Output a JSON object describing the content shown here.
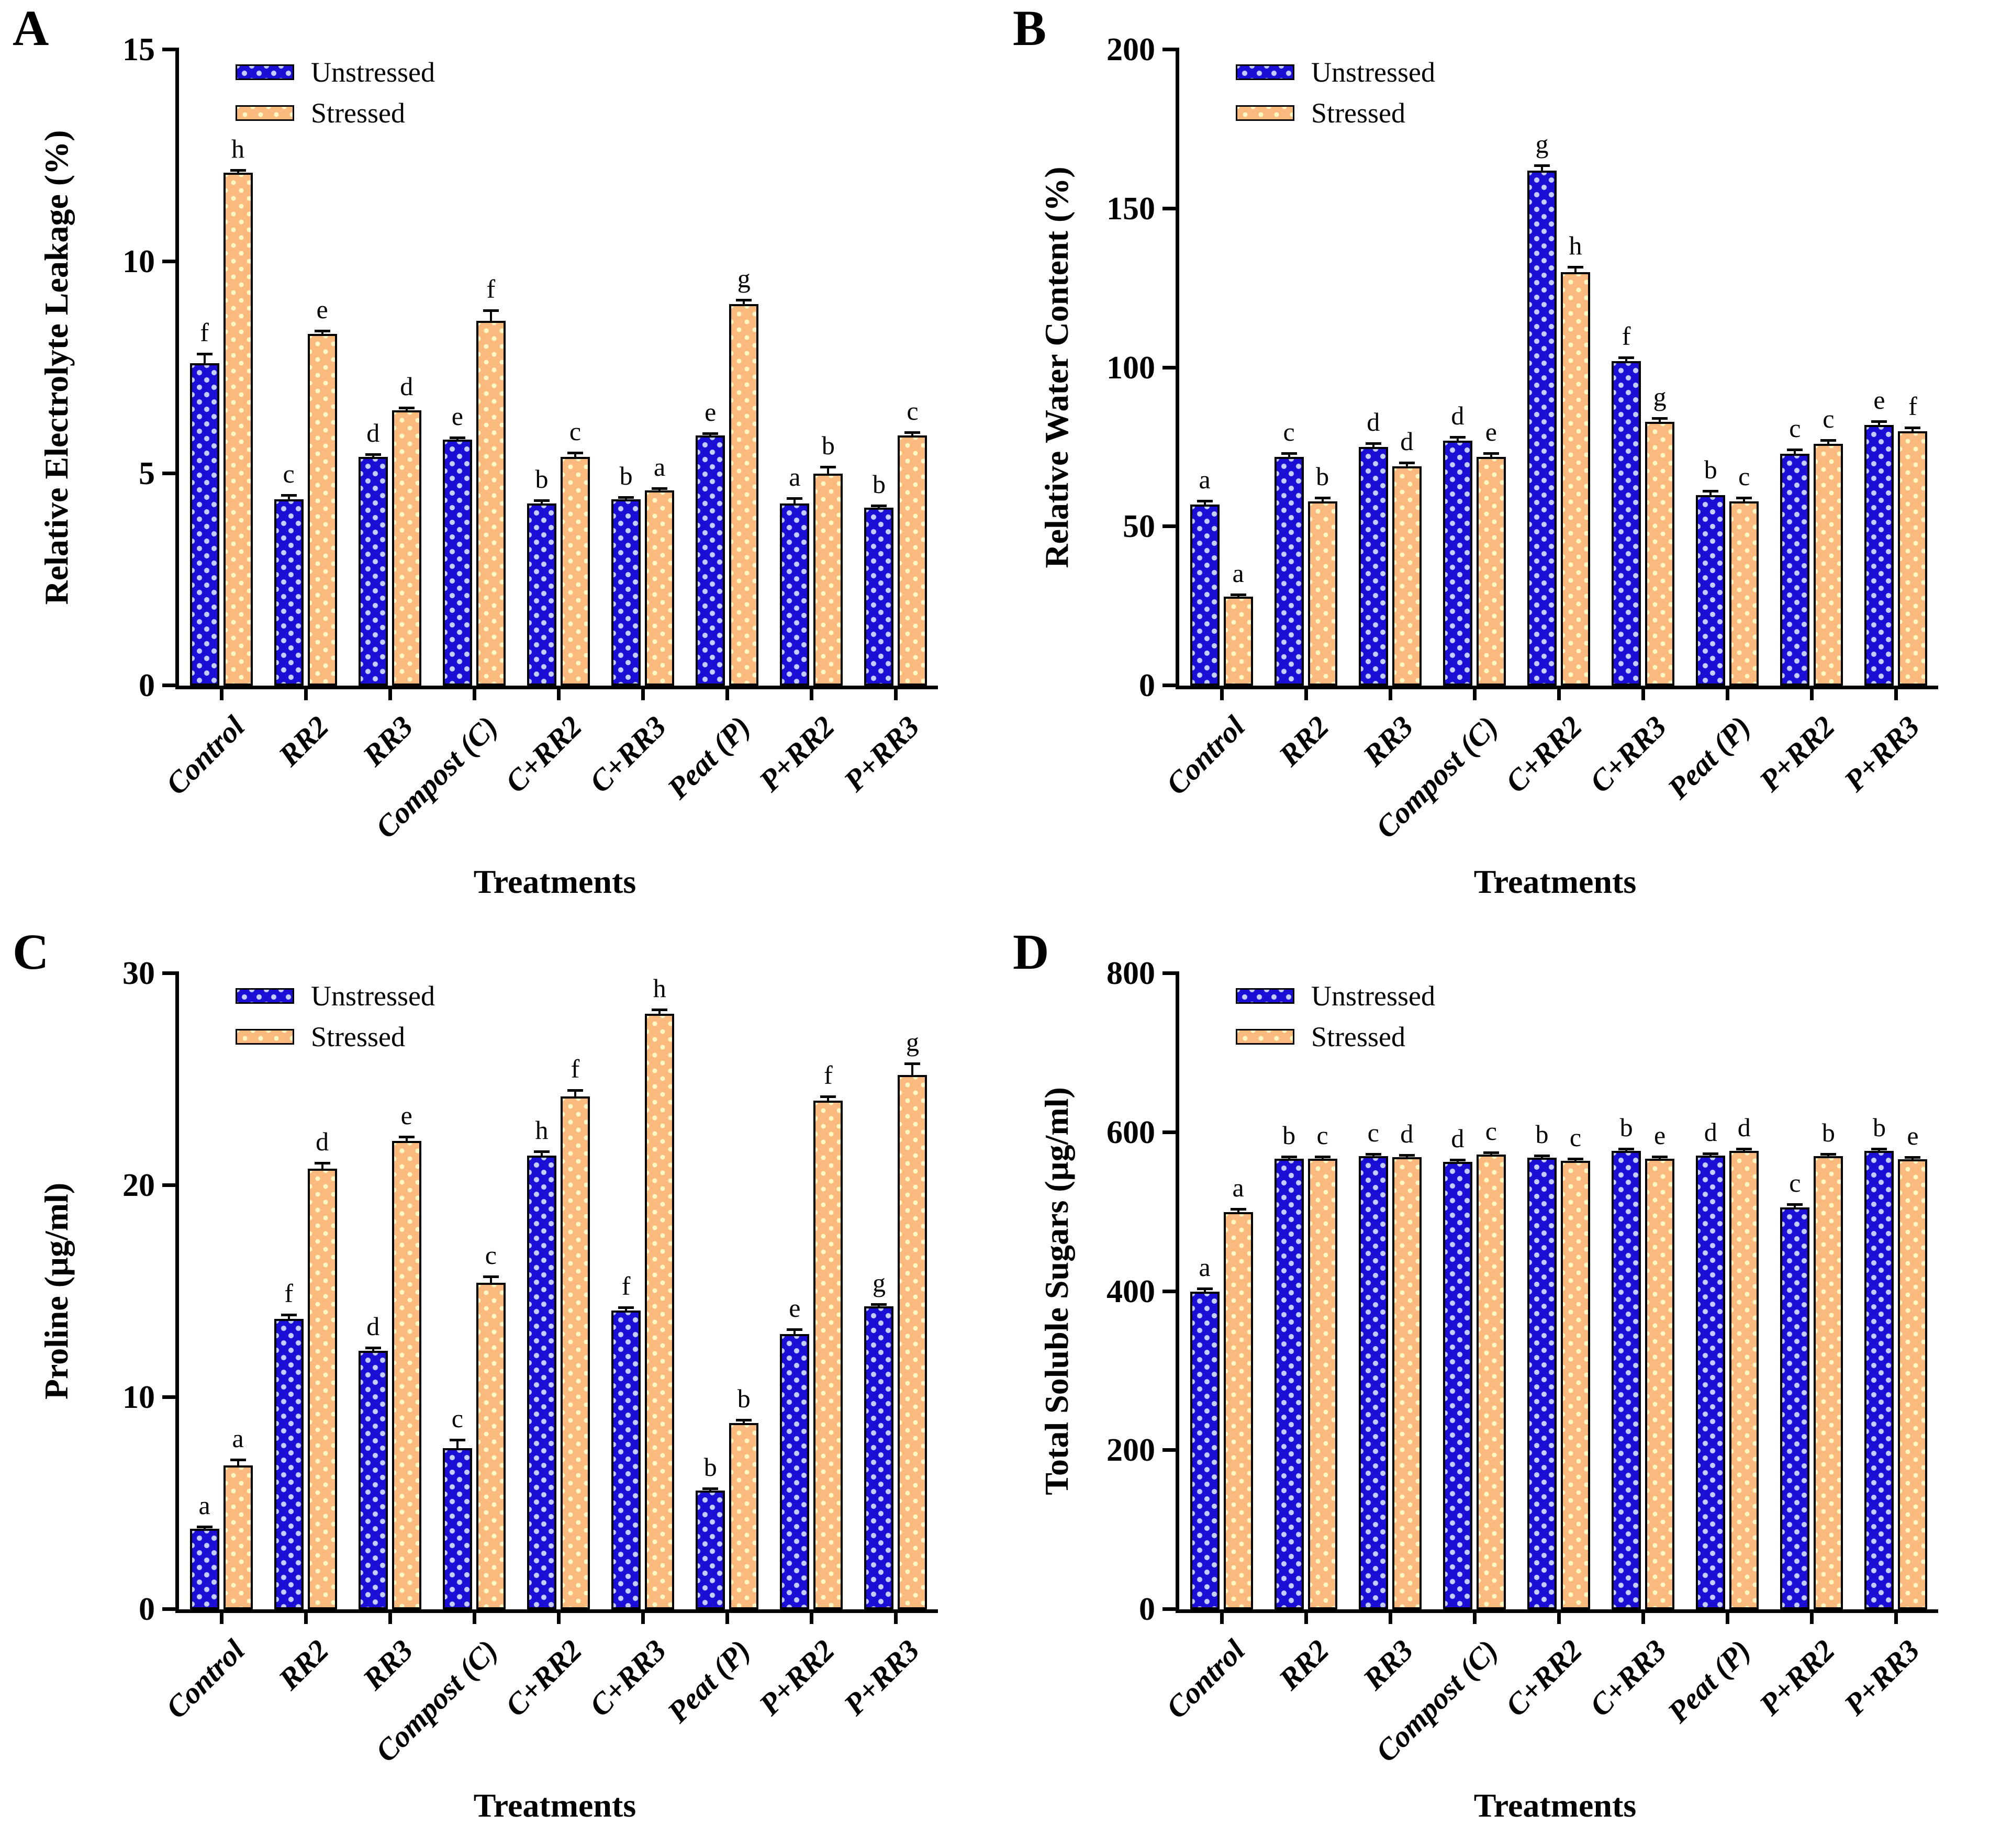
{
  "legend": {
    "unstressed": "Unstressed",
    "stressed": "Stressed"
  },
  "colors": {
    "unstressed_fill": "#1b0fd6",
    "unstressed_pattern_dot": "#cdd7ff",
    "stressed_fill": "#fbba7d",
    "stressed_pattern_dot": "#fff7c4",
    "axis": "#000000"
  },
  "categories": [
    "Control",
    "RR2",
    "RR3",
    "Compost (C)",
    "C+RR2",
    "C+RR3",
    "Peat (P)",
    "P+RR2",
    "P+RR3"
  ],
  "chart_data": [
    {
      "id": "A",
      "type": "bar",
      "ylabel": "Relative Electrolyte Leakage (%)",
      "xlabel": "Treatments",
      "ylim": [
        0,
        15
      ],
      "yticks": [
        0,
        5,
        10,
        15
      ],
      "grid": false,
      "legend_position": "top-left",
      "categories": [
        "Control",
        "RR2",
        "RR3",
        "Compost (C)",
        "C+RR2",
        "C+RR3",
        "Peat (P)",
        "P+RR2",
        "P+RR3"
      ],
      "series": [
        {
          "name": "Unstressed",
          "values": [
            7.6,
            4.4,
            5.4,
            5.8,
            4.3,
            4.4,
            5.9,
            4.3,
            4.2
          ],
          "errors": [
            0.25,
            0.12,
            0.08,
            0.08,
            0.1,
            0.06,
            0.08,
            0.15,
            0.06
          ],
          "letters": [
            "f",
            "c",
            "d",
            "e",
            "b",
            "b",
            "e",
            "a",
            "b"
          ]
        },
        {
          "name": "Stressed",
          "values": [
            12.1,
            8.3,
            6.5,
            8.6,
            5.4,
            4.6,
            9.0,
            5.0,
            5.9
          ],
          "errors": [
            0.08,
            0.1,
            0.08,
            0.28,
            0.12,
            0.06,
            0.12,
            0.18,
            0.1
          ],
          "letters": [
            "h",
            "e",
            "d",
            "f",
            "c",
            "a",
            "g",
            "b",
            "c"
          ]
        }
      ]
    },
    {
      "id": "B",
      "type": "bar",
      "ylabel": "Relative Water Content (%)",
      "xlabel": "Treatments",
      "ylim": [
        0,
        200
      ],
      "yticks": [
        0,
        50,
        100,
        150,
        200
      ],
      "grid": false,
      "legend_position": "top-left",
      "categories": [
        "Control",
        "RR2",
        "RR3",
        "Compost (C)",
        "C+RR2",
        "C+RR3",
        "Peat (P)",
        "P+RR2",
        "P+RR3"
      ],
      "series": [
        {
          "name": "Unstressed",
          "values": [
            57,
            72,
            75,
            77,
            162,
            102,
            60,
            73,
            82
          ],
          "errors": [
            1.5,
            1.5,
            1.5,
            1.5,
            2,
            1.5,
            1.5,
            1.5,
            1.5
          ],
          "letters": [
            "a",
            "c",
            "d",
            "d",
            "g",
            "f",
            "b",
            "c",
            "e"
          ]
        },
        {
          "name": "Stressed",
          "values": [
            28,
            58,
            69,
            72,
            130,
            83,
            58,
            76,
            80
          ],
          "errors": [
            1,
            1.5,
            1.5,
            1.5,
            2,
            1.5,
            1.5,
            1.5,
            1.5
          ],
          "letters": [
            "a",
            "b",
            "d",
            "e",
            "h",
            "g",
            "c",
            "c",
            "f"
          ]
        }
      ]
    },
    {
      "id": "C",
      "type": "bar",
      "ylabel": "Proline (µg/ml)",
      "xlabel": "Treatments",
      "ylim": [
        0,
        30
      ],
      "yticks": [
        0,
        10,
        20,
        30
      ],
      "grid": false,
      "legend_position": "top-left",
      "categories": [
        "Control",
        "RR2",
        "RR3",
        "Compost (C)",
        "C+RR2",
        "C+RR3",
        "Peat (P)",
        "P+RR2",
        "P+RR3"
      ],
      "series": [
        {
          "name": "Unstressed",
          "values": [
            3.8,
            13.7,
            12.2,
            7.6,
            21.4,
            14.1,
            5.6,
            13.0,
            14.3
          ],
          "errors": [
            0.12,
            0.25,
            0.2,
            0.45,
            0.25,
            0.2,
            0.12,
            0.25,
            0.15
          ],
          "letters": [
            "a",
            "f",
            "d",
            "c",
            "h",
            "f",
            "b",
            "e",
            "g"
          ]
        },
        {
          "name": "Stressed",
          "values": [
            6.8,
            20.8,
            22.1,
            15.4,
            24.2,
            28.1,
            8.8,
            24.0,
            25.2
          ],
          "errors": [
            0.3,
            0.3,
            0.25,
            0.35,
            0.35,
            0.25,
            0.2,
            0.25,
            0.6
          ],
          "letters": [
            "a",
            "d",
            "e",
            "c",
            "f",
            "h",
            "b",
            "f",
            "g"
          ]
        }
      ]
    },
    {
      "id": "D",
      "type": "bar",
      "ylabel": "Total Soluble Sugars (µg/ml)",
      "xlabel": "Treatments",
      "ylim": [
        0,
        800
      ],
      "yticks": [
        0,
        200,
        400,
        600,
        800
      ],
      "grid": false,
      "legend_position": "top-left",
      "categories": [
        "Control",
        "RR2",
        "RR3",
        "Compost (C)",
        "C+RR2",
        "C+RR3",
        "Peat (P)",
        "P+RR2",
        "P+RR3"
      ],
      "series": [
        {
          "name": "Unstressed",
          "values": [
            400,
            567,
            570,
            563,
            568,
            577,
            571,
            506,
            577
          ],
          "errors": [
            5,
            4,
            4,
            4,
            4,
            4,
            4,
            5,
            4
          ],
          "letters": [
            "a",
            "b",
            "c",
            "d",
            "b",
            "b",
            "d",
            "c",
            "b"
          ]
        },
        {
          "name": "Stressed",
          "values": [
            500,
            567,
            569,
            572,
            564,
            567,
            577,
            570,
            566
          ],
          "errors": [
            5,
            4,
            4,
            4,
            4,
            4,
            4,
            4,
            4
          ],
          "letters": [
            "a",
            "c",
            "d",
            "c",
            "c",
            "e",
            "d",
            "b",
            "e"
          ]
        }
      ]
    }
  ]
}
